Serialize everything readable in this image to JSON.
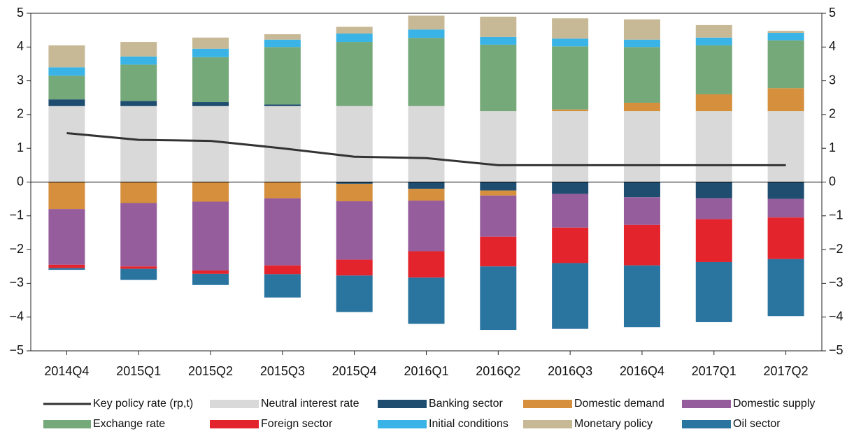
{
  "chart_data": {
    "type": "bar",
    "stacked": true,
    "categories": [
      "2014Q4",
      "2015Q1",
      "2015Q2",
      "2015Q3",
      "2015Q4",
      "2016Q1",
      "2016Q2",
      "2016Q3",
      "2016Q4",
      "2017Q1",
      "2017Q2"
    ],
    "ylim": [
      -5,
      5
    ],
    "yticks": [
      {
        "value": -5,
        "label": "−5"
      },
      {
        "value": -4,
        "label": "−4"
      },
      {
        "value": -3,
        "label": "−3"
      },
      {
        "value": -2,
        "label": "−2"
      },
      {
        "value": -1,
        "label": "−1"
      },
      0,
      1,
      2,
      3,
      4,
      5
    ],
    "y2lim": [
      -5,
      5
    ],
    "y2ticks": [
      {
        "value": -5,
        "label": "−5"
      },
      {
        "value": -4,
        "label": "−4"
      },
      {
        "value": -3,
        "label": "−3"
      },
      {
        "value": -2,
        "label": "−2"
      },
      {
        "value": -1,
        "label": "−1"
      },
      0,
      1,
      2,
      3,
      4,
      5
    ],
    "series": [
      {
        "name": "Key policy rate (rp,t)",
        "type": "line",
        "color": "#333333",
        "values": [
          1.45,
          1.25,
          1.22,
          1.0,
          0.75,
          0.71,
          0.5,
          0.5,
          0.5,
          0.5,
          0.5
        ]
      },
      {
        "name": "Neutral interest rate",
        "color": "#d9d9d9",
        "values": [
          2.25,
          2.25,
          2.25,
          2.25,
          2.25,
          2.25,
          2.1,
          2.1,
          2.1,
          2.1,
          2.1
        ]
      },
      {
        "name": "Banking sector",
        "color": "#1e4d6f",
        "values": [
          0.2,
          0.15,
          0.12,
          0.05,
          -0.05,
          -0.2,
          -0.25,
          -0.35,
          -0.45,
          -0.48,
          -0.5
        ]
      },
      {
        "name": "Domestic demand",
        "color": "#d58f3d",
        "values": [
          -0.8,
          -0.62,
          -0.58,
          -0.48,
          -0.52,
          -0.35,
          -0.15,
          0.05,
          0.25,
          0.5,
          0.68
        ]
      },
      {
        "name": "Domestic supply",
        "color": "#955d9b",
        "values": [
          -1.65,
          -1.88,
          -2.04,
          -1.99,
          -1.73,
          -1.5,
          -1.22,
          -1.0,
          -0.82,
          -0.62,
          -0.55
        ]
      },
      {
        "name": "Exchange rate",
        "color": "#76a97a",
        "values": [
          0.7,
          1.08,
          1.33,
          1.7,
          1.9,
          2.02,
          1.97,
          1.87,
          1.65,
          1.45,
          1.42
        ]
      },
      {
        "name": "Foreign sector",
        "color": "#e4242c",
        "values": [
          -0.1,
          -0.07,
          -0.1,
          -0.26,
          -0.47,
          -0.78,
          -0.88,
          -1.05,
          -1.2,
          -1.27,
          -1.23
        ]
      },
      {
        "name": "Initial conditions",
        "color": "#3ab3e6",
        "values": [
          0.25,
          0.24,
          0.25,
          0.22,
          0.25,
          0.25,
          0.23,
          0.23,
          0.22,
          0.23,
          0.22
        ]
      },
      {
        "name": "Monetary policy",
        "color": "#c7b996",
        "values": [
          0.65,
          0.43,
          0.33,
          0.16,
          0.2,
          0.41,
          0.6,
          0.6,
          0.6,
          0.37,
          0.06
        ]
      },
      {
        "name": "Oil sector",
        "color": "#2a74a0",
        "values": [
          -0.05,
          -0.33,
          -0.33,
          -0.69,
          -1.08,
          -1.37,
          -1.88,
          -1.95,
          -1.83,
          -1.78,
          -1.69
        ]
      }
    ]
  }
}
